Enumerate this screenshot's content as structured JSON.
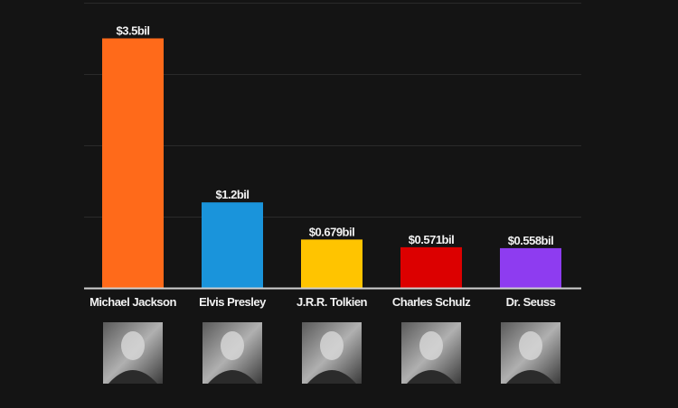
{
  "chart_data": {
    "type": "bar",
    "title": "",
    "xlabel": "",
    "ylabel": "",
    "ylim": [
      0,
      4
    ],
    "grid": true,
    "categories": [
      "Michael Jackson",
      "Elvis Presley",
      "J.R.R. Tolkien",
      "Charles Schulz",
      "Dr. Seuss"
    ],
    "values": [
      3.5,
      1.2,
      0.679,
      0.571,
      0.558
    ],
    "data_labels": [
      "$3.5bil",
      "$1.2bil",
      "$0.679bil",
      "$0.571bil",
      "$0.558bil"
    ],
    "colors": [
      "#ff6a1a",
      "#1a94db",
      "#ffc400",
      "#dc0000",
      "#8e3cf0"
    ],
    "images": [
      "portrait-michael-jackson",
      "portrait-elvis-presley",
      "portrait-jrr-tolkien",
      "portrait-charles-schulz",
      "portrait-dr-seuss"
    ]
  }
}
